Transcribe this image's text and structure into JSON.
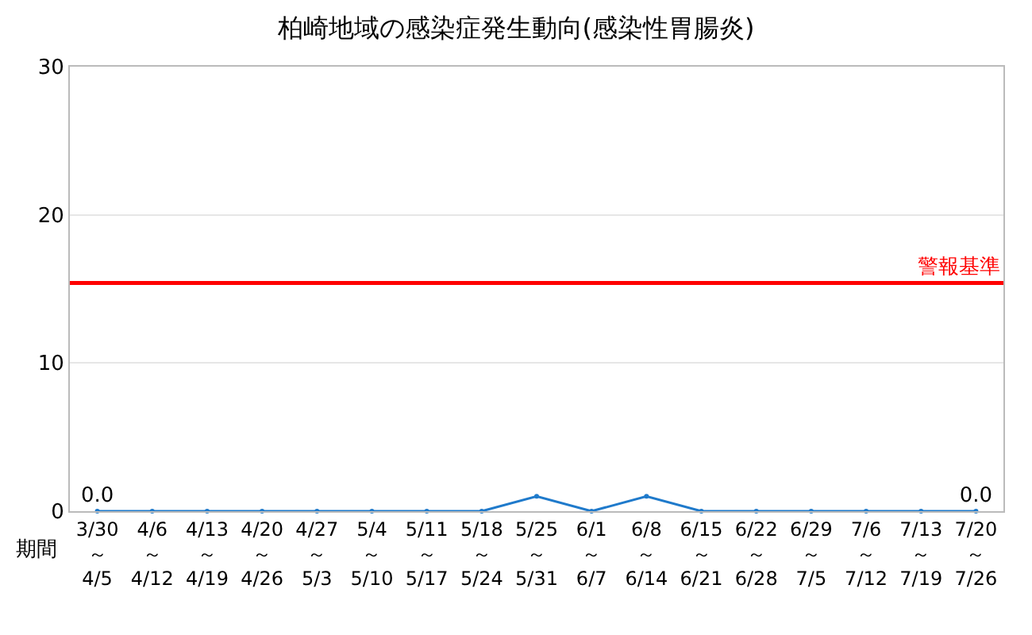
{
  "chart_data": {
    "type": "line",
    "title": "柏崎地域の感染症発生動向(感染性胃腸炎)",
    "categories": [
      "3/30\n～\n4/5",
      "4/6\n～\n4/12",
      "4/13\n～\n4/19",
      "4/20\n～\n4/26",
      "4/27\n～\n5/3",
      "5/4\n～\n5/10",
      "5/11\n～\n5/17",
      "5/18\n～\n5/24",
      "5/25\n～\n5/31",
      "6/1\n～\n6/7",
      "6/8\n～\n6/14",
      "6/15\n～\n6/21",
      "6/22\n～\n6/28",
      "6/29\n～\n7/5",
      "7/6\n～\n7/12",
      "7/13\n～\n7/19",
      "7/20\n～\n7/26"
    ],
    "series": [
      {
        "color": "#1f7acb",
        "values": [
          0,
          0,
          0,
          0,
          0,
          0,
          0,
          0,
          1,
          0,
          1,
          0,
          0,
          0,
          0,
          0,
          0
        ],
        "value_labels": [
          "0.0",
          null,
          null,
          null,
          null,
          null,
          null,
          null,
          null,
          null,
          null,
          null,
          null,
          null,
          null,
          null,
          "0.0"
        ]
      }
    ],
    "ylim": [
      0,
      30
    ],
    "yticks": [
      0,
      10,
      20,
      30
    ],
    "grid": "y",
    "marker": "circle",
    "line_style": "solid",
    "ref_lines": [
      {
        "axis": "y",
        "value": 15.4,
        "label": "警報基準",
        "color": "#ff0000"
      }
    ],
    "annotations": [
      "期間"
    ]
  }
}
